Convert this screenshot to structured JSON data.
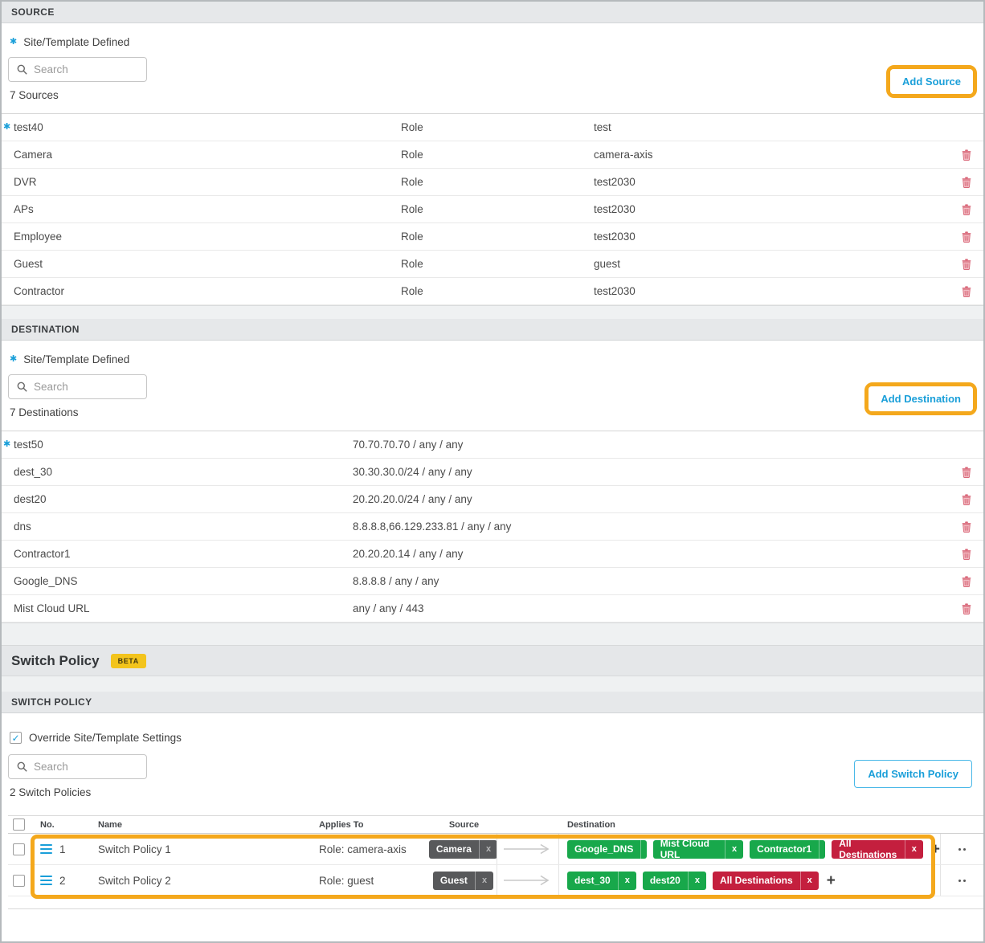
{
  "colors": {
    "accent_blue": "#1a9fd9",
    "highlight_orange": "#f4a81c",
    "chip_dark": "#58595b",
    "chip_green": "#18a84b",
    "chip_red": "#c41f3e",
    "beta_yellow": "#f3c41c",
    "trash_pink": "#d96879",
    "header_gray": "#e6e8ea"
  },
  "icons": {
    "search": "magnifier",
    "star": "✱",
    "trash": "trash-can",
    "drag_handle": "three-bars",
    "arrow": "right-arrow",
    "plus": "+",
    "more": "two-dots"
  },
  "source_section": {
    "title": "SOURCE",
    "defined_label": "Site/Template Defined",
    "search_placeholder": "Search",
    "add_button": "Add Source",
    "count_label": "7 Sources",
    "rows": [
      {
        "name": "test40",
        "starred": true,
        "type": "Role",
        "value": "test",
        "deletable": false
      },
      {
        "name": "Camera",
        "starred": false,
        "type": "Role",
        "value": "camera-axis",
        "deletable": true
      },
      {
        "name": "DVR",
        "starred": false,
        "type": "Role",
        "value": "test2030",
        "deletable": true
      },
      {
        "name": "APs",
        "starred": false,
        "type": "Role",
        "value": "test2030",
        "deletable": true
      },
      {
        "name": "Employee",
        "starred": false,
        "type": "Role",
        "value": "test2030",
        "deletable": true
      },
      {
        "name": "Guest",
        "starred": false,
        "type": "Role",
        "value": "guest",
        "deletable": true
      },
      {
        "name": "Contractor",
        "starred": false,
        "type": "Role",
        "value": "test2030",
        "deletable": true
      }
    ]
  },
  "destination_section": {
    "title": "DESTINATION",
    "defined_label": "Site/Template Defined",
    "search_placeholder": "Search",
    "add_button": "Add Destination",
    "count_label": "7 Destinations",
    "rows": [
      {
        "name": "test50",
        "starred": true,
        "value": "70.70.70.70 / any / any",
        "deletable": false
      },
      {
        "name": "dest_30",
        "starred": false,
        "value": "30.30.30.0/24 / any / any",
        "deletable": true
      },
      {
        "name": "dest20",
        "starred": false,
        "value": "20.20.20.0/24 / any / any",
        "deletable": true
      },
      {
        "name": "dns",
        "starred": false,
        "value": "8.8.8.8,66.129.233.81 / any / any",
        "deletable": true
      },
      {
        "name": "Contractor1",
        "starred": false,
        "value": "20.20.20.14 / any / any",
        "deletable": true
      },
      {
        "name": "Google_DNS",
        "starred": false,
        "value": "8.8.8.8 / any / any",
        "deletable": true
      },
      {
        "name": "Mist Cloud URL",
        "starred": false,
        "value": "any / any / 443",
        "deletable": true
      }
    ]
  },
  "switch_policy_banner": {
    "title": "Switch Policy",
    "badge": "BETA"
  },
  "switch_policy_section": {
    "title": "SWITCH POLICY",
    "override_label": "Override Site/Template Settings",
    "override_checked": true,
    "search_placeholder": "Search",
    "add_button": "Add Switch Policy",
    "count_label": "2 Switch Policies",
    "columns": [
      "No.",
      "Name",
      "Applies To",
      "Source",
      "Destination"
    ],
    "policies": [
      {
        "no": "1",
        "name": "Switch Policy 1",
        "applies_to": "Role: camera-axis",
        "sources": [
          {
            "label": "Camera",
            "color": "dark"
          }
        ],
        "destinations": [
          {
            "label": "Google_DNS",
            "color": "green"
          },
          {
            "label": "Mist Cloud URL",
            "color": "green"
          },
          {
            "label": "Contractor1",
            "color": "green"
          },
          {
            "label": "All Destinations",
            "color": "red"
          }
        ]
      },
      {
        "no": "2",
        "name": "Switch Policy 2",
        "applies_to": "Role: guest",
        "sources": [
          {
            "label": "Guest",
            "color": "dark"
          }
        ],
        "destinations": [
          {
            "label": "dest_30",
            "color": "green"
          },
          {
            "label": "dest20",
            "color": "green"
          },
          {
            "label": "All Destinations",
            "color": "red"
          }
        ]
      }
    ]
  }
}
